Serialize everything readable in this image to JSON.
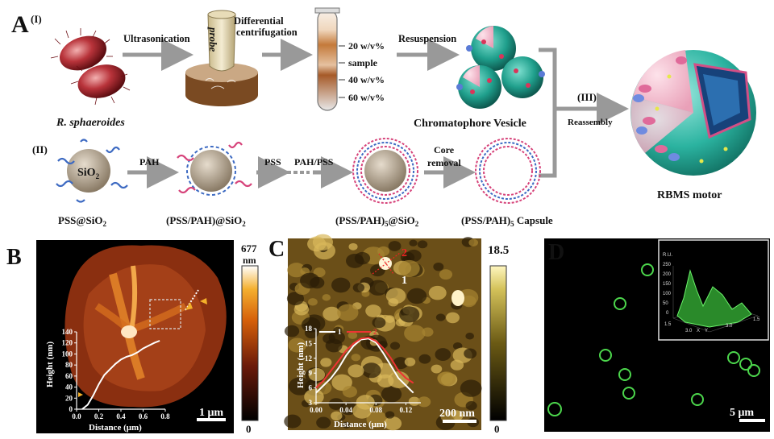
{
  "panelA": {
    "label": "A",
    "sub_I": "(I)",
    "sub_II": "(II)",
    "sub_III": "(III)",
    "organism": "R. sphaeroides",
    "step_ultrasonication": "Ultrasonication",
    "probe": "probe",
    "step_diff1": "Differential",
    "step_diff2": "centrifugation",
    "gradient": [
      "20 w/v%",
      "sample",
      "40 w/v%",
      "60 w/v%"
    ],
    "step_resuspension": "Resuspension",
    "chromatophore": "Chromatophore Vesicle",
    "reassembly": "Reassembly",
    "motor": "RBMS motor",
    "sio2": "SiO",
    "sio2_sub": "2",
    "pah": "PAH",
    "pss": "PSS",
    "pah_pss": "PAH/PSS",
    "core1": "Core",
    "core2": "removal",
    "lbl_pss_sio2": "PSS@SiO",
    "lbl_pss_pah_sio2": "(PSS/PAH)@SiO",
    "lbl_pss_pah5_sio2": "(PSS/PAH)",
    "lbl_pss_pah5_sio2_b": "@SiO",
    "lbl_capsule": "(PSS/PAH)",
    "lbl_capsule_b": " Capsule",
    "sub2": "2",
    "sub5": "5"
  },
  "panelB": {
    "label": "B",
    "scale_max": "677",
    "scale_unit": "nm",
    "scale_min": "0",
    "scalebar": "1 μm",
    "ylabel": "Height (nm)",
    "xlabel": "Distance (μm)",
    "yticks": [
      "140",
      "120",
      "100",
      "80",
      "60",
      "40",
      "20",
      "0"
    ],
    "xticks": [
      "0.0",
      "0.2",
      "0.4",
      "0.6",
      "0.8"
    ]
  },
  "panelC": {
    "label": "C",
    "scale_max": "18.5",
    "scale_min": "0",
    "scalebar": "200 nm",
    "marker1": "1",
    "marker2": "2",
    "legend1": "1",
    "legend2": "2",
    "ylabel": "Height (nm)",
    "xlabel": "Distance (μm)",
    "yticks": [
      "18",
      "15",
      "12",
      "9",
      "6",
      "3"
    ],
    "xticks": [
      "0.00",
      "0.04",
      "0.08",
      "0.12"
    ]
  },
  "panelD": {
    "label": "D",
    "scalebar": "5 μm",
    "inset_axis": [
      "1.5",
      "3.0",
      "X",
      "Y",
      "3.0",
      "1.5"
    ]
  },
  "chart_data": [
    {
      "type": "line",
      "panel": "B",
      "xlabel": "Distance (μm)",
      "ylabel": "Height (nm)",
      "xlim": [
        0,
        0.8
      ],
      "ylim": [
        0,
        140
      ],
      "series": [
        {
          "x": [
            0.05,
            0.1,
            0.15,
            0.2,
            0.25,
            0.3,
            0.35,
            0.4,
            0.45,
            0.5,
            0.55,
            0.6,
            0.65,
            0.7,
            0.75
          ],
          "y": [
            0,
            8,
            25,
            45,
            62,
            72,
            82,
            90,
            95,
            98,
            103,
            110,
            115,
            120,
            124
          ]
        }
      ]
    },
    {
      "type": "line",
      "panel": "C",
      "xlabel": "Distance (μm)",
      "ylabel": "Height (nm)",
      "xlim": [
        0,
        0.14
      ],
      "ylim": [
        3,
        18
      ],
      "series": [
        {
          "name": "1",
          "x": [
            0,
            0.01,
            0.02,
            0.03,
            0.04,
            0.05,
            0.06,
            0.07,
            0.08,
            0.09,
            0.1,
            0.11,
            0.12,
            0.13
          ],
          "y": [
            5,
            6.5,
            8,
            10,
            12.5,
            14.5,
            15.8,
            16,
            15.2,
            13,
            10.5,
            8,
            6.5,
            5
          ]
        },
        {
          "name": "2",
          "x": [
            0,
            0.01,
            0.02,
            0.03,
            0.04,
            0.05,
            0.06,
            0.07,
            0.08,
            0.09,
            0.1,
            0.11,
            0.12,
            0.13
          ],
          "y": [
            6,
            7.5,
            9.5,
            11.5,
            13.5,
            15,
            16,
            16.2,
            15.5,
            14,
            12,
            9.5,
            8,
            7
          ]
        }
      ]
    }
  ]
}
